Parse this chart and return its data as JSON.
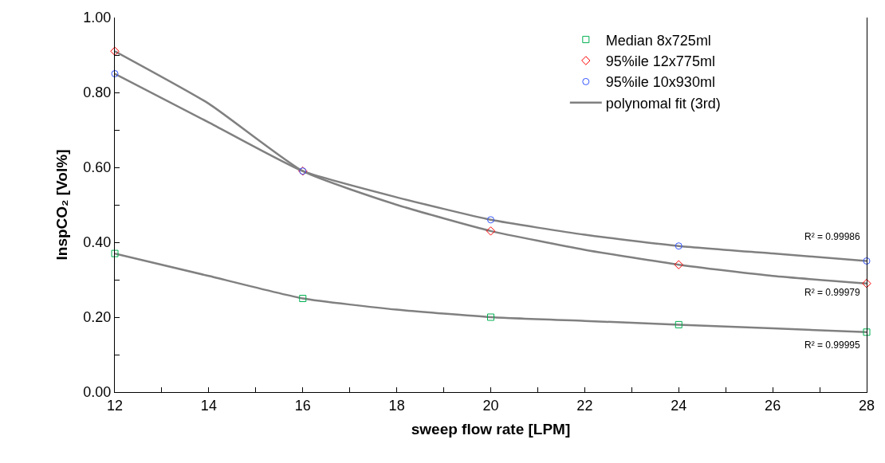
{
  "chart_data": {
    "type": "scatter",
    "xlabel": "sweep flow rate [LPM]",
    "ylabel": "InspCO₂ [Vol%]",
    "xlim": [
      12,
      28
    ],
    "xticks": [
      12,
      {
        "value": 13,
        "label": null
      },
      14,
      {
        "value": 15,
        "label": null
      },
      16,
      {
        "value": 17,
        "label": null
      },
      18,
      {
        "value": 19,
        "label": null
      },
      20,
      {
        "value": 21,
        "label": null
      },
      22,
      {
        "value": 23,
        "label": null
      },
      24,
      {
        "value": 25,
        "label": null
      },
      26,
      {
        "value": 27,
        "label": null
      },
      28
    ],
    "ylim": [
      0,
      1
    ],
    "yticks": [
      {
        "value": 0,
        "label": "0.00"
      },
      {
        "value": 0.1,
        "label": null
      },
      {
        "value": 0.2,
        "label": "0.20"
      },
      {
        "value": 0.3,
        "label": null
      },
      {
        "value": 0.4,
        "label": "0.40"
      },
      {
        "value": 0.5,
        "label": null
      },
      {
        "value": 0.6,
        "label": "0.60"
      },
      {
        "value": 0.7,
        "label": null
      },
      {
        "value": 0.8,
        "label": "0.80"
      },
      {
        "value": 0.9,
        "label": null
      },
      {
        "value": 1,
        "label": "1.00"
      }
    ],
    "grid": false,
    "legend": "top right",
    "line_style": "solid",
    "x": [
      12,
      16,
      20,
      24,
      28
    ],
    "series": [
      {
        "name": "Median 8x725ml",
        "marker": "square",
        "color": "#00b050",
        "values": [
          0.37,
          0.25,
          0.2,
          0.18,
          0.16
        ]
      },
      {
        "name": "95%ile 12x775ml",
        "marker": "diamond",
        "color": "#ff0000",
        "values": [
          0.91,
          0.59,
          0.43,
          0.34,
          0.29
        ]
      },
      {
        "name": "95%ile 10x930ml",
        "marker": "circle",
        "color": "#3355ff",
        "values": [
          0.85,
          0.59,
          0.46,
          0.39,
          0.35
        ]
      },
      {
        "name": "polynomal fit (3rd)",
        "type": "line",
        "marker": "none",
        "color": "#808080",
        "x": [
          12,
          14,
          16,
          18,
          20,
          22,
          24,
          26,
          28
        ],
        "values": [
          0.37,
          0.31,
          0.25,
          0.22,
          0.2,
          0.19,
          0.18,
          0.17,
          0.16
        ]
      },
      {
        "type": "line",
        "marker": "none",
        "color": "#808080",
        "x": [
          12,
          14,
          16,
          18,
          20,
          22,
          24,
          26,
          28
        ],
        "values": [
          0.91,
          0.77,
          0.59,
          0.5,
          0.43,
          0.38,
          0.34,
          0.31,
          0.29
        ]
      },
      {
        "type": "line",
        "marker": "none",
        "color": "#808080",
        "x": [
          12,
          14,
          16,
          18,
          20,
          22,
          24,
          26,
          28
        ],
        "values": [
          0.85,
          0.72,
          0.59,
          0.52,
          0.46,
          0.42,
          0.39,
          0.37,
          0.35
        ]
      }
    ],
    "annotations": [
      "R² = 0.99986",
      "R² = 0.99979",
      "R² = 0.99995"
    ]
  }
}
